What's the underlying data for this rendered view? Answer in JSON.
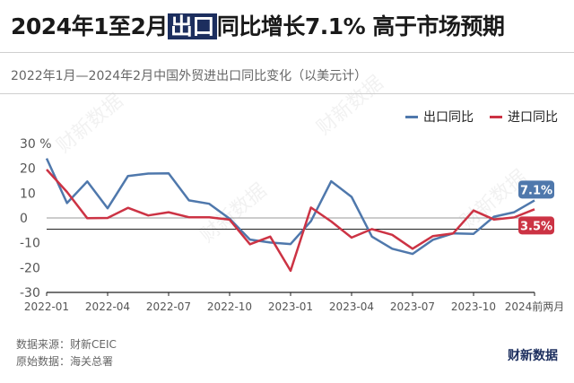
{
  "header": {
    "title_before": "2024年1至2月",
    "title_highlight": "出口",
    "title_after": "同比增长7.1% 高于市场预期",
    "subtitle": "2022年1月—2024年2月中国外贸进出口同比变化（以美元计）"
  },
  "footer": {
    "source": "数据来源：财新CEIC",
    "original": "原始数据：海关总署",
    "brand": "财新数据"
  },
  "watermark": "财新数据",
  "colors": {
    "export": "#4f78ac",
    "import": "#cc3344",
    "axis": "#222222",
    "tick": "#555555"
  },
  "chart_data": {
    "type": "line",
    "title": "2022年1月—2024年2月中国外贸进出口同比变化（以美元计）",
    "unit": "%",
    "ylim": [
      -30,
      30
    ],
    "yticks": [
      30,
      20,
      10,
      0,
      -10,
      -20,
      -30
    ],
    "xtick_labels": [
      "2022-01",
      "2022-04",
      "2022-07",
      "2022-10",
      "2023-01",
      "2023-04",
      "2023-07",
      "2023-10",
      "2024前两月"
    ],
    "x": [
      "2022-01",
      "2022-02",
      "2022-03",
      "2022-04",
      "2022-05",
      "2022-06",
      "2022-07",
      "2022-08",
      "2022-09",
      "2022-10",
      "2022-11",
      "2022-12",
      "2023-01",
      "2023-02",
      "2023-03",
      "2023-04",
      "2023-05",
      "2023-06",
      "2023-07",
      "2023-08",
      "2023-09",
      "2023-10",
      "2023-11",
      "2023-12",
      "2024前两月"
    ],
    "series": [
      {
        "name": "出口同比",
        "color": "#4f78ac",
        "values": [
          24,
          6,
          14.7,
          3.9,
          16.9,
          17.9,
          18,
          7.1,
          5.7,
          -0.3,
          -8.7,
          -9.9,
          -10.5,
          -1.3,
          14.8,
          8.5,
          -7.5,
          -12.4,
          -14.5,
          -8.8,
          -6.2,
          -6.4,
          0.5,
          2.3,
          7.1
        ],
        "end_label": "7.1%"
      },
      {
        "name": "进口同比",
        "color": "#cc3344",
        "values": [
          19.5,
          10.5,
          -0.1,
          0,
          4.1,
          1,
          2.3,
          0.3,
          0.3,
          -0.7,
          -10.6,
          -7.5,
          -21.3,
          4.2,
          -1.4,
          -7.9,
          -4.5,
          -6.8,
          -12.4,
          -7.3,
          -6.2,
          3,
          -0.6,
          0.2,
          3.5
        ],
        "end_label": "3.5%"
      }
    ],
    "reference_line": {
      "value": -4.5
    },
    "grid": false,
    "legend_position": "top-right"
  }
}
